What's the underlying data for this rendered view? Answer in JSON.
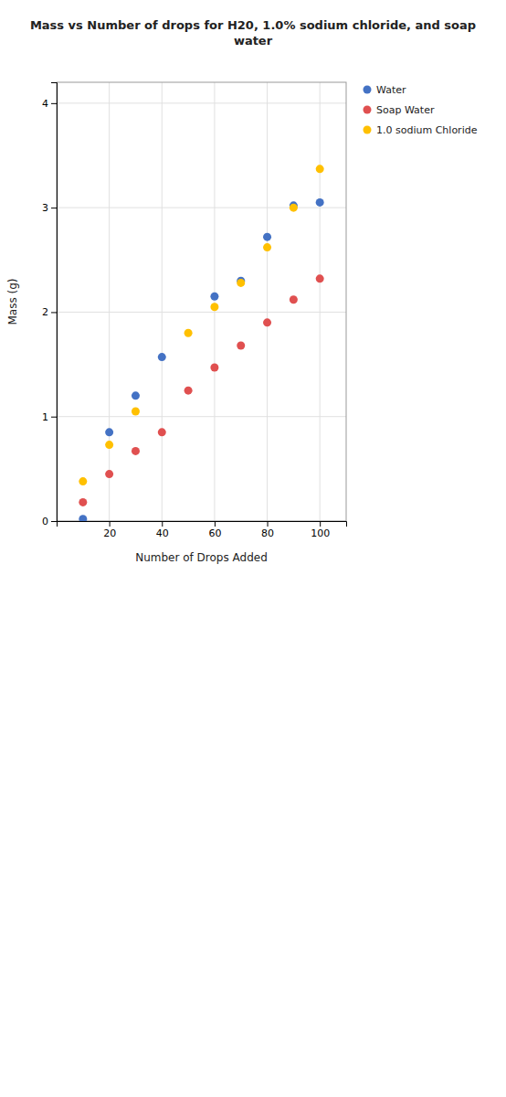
{
  "chart_data": {
    "type": "scatter",
    "title": "Mass vs Number of drops for H20, 1.0% sodium chloride, and soap\nwater",
    "x_label": "Number of Drops Added",
    "y_label": "Mass (g)",
    "xlim": [
      0,
      110
    ],
    "ylim": [
      0,
      4.2
    ],
    "xticks": [
      20,
      40,
      60,
      80,
      100
    ],
    "yticks": [
      0,
      1,
      2,
      3,
      4
    ],
    "grid": true,
    "legend": "right",
    "series": [
      {
        "name": "Water",
        "color": "#4472C4",
        "x": [
          10,
          20,
          30,
          40,
          60,
          70,
          80,
          90,
          100
        ],
        "values": [
          0.02,
          0.85,
          1.2,
          1.57,
          2.15,
          2.3,
          2.72,
          3.02,
          3.05
        ]
      },
      {
        "name": "Soap Water",
        "color": "#E05050",
        "x": [
          10,
          20,
          30,
          40,
          50,
          60,
          70,
          80,
          90,
          100
        ],
        "values": [
          0.18,
          0.45,
          0.67,
          0.85,
          1.25,
          1.47,
          1.68,
          1.9,
          2.12,
          2.32
        ]
      },
      {
        "name": "1.0 sodium Chloride",
        "color": "#FFC000",
        "x": [
          10,
          20,
          30,
          50,
          60,
          70,
          80,
          90,
          100
        ],
        "values": [
          0.38,
          0.73,
          1.05,
          1.8,
          2.05,
          2.28,
          2.62,
          3.0,
          3.37
        ]
      }
    ]
  }
}
